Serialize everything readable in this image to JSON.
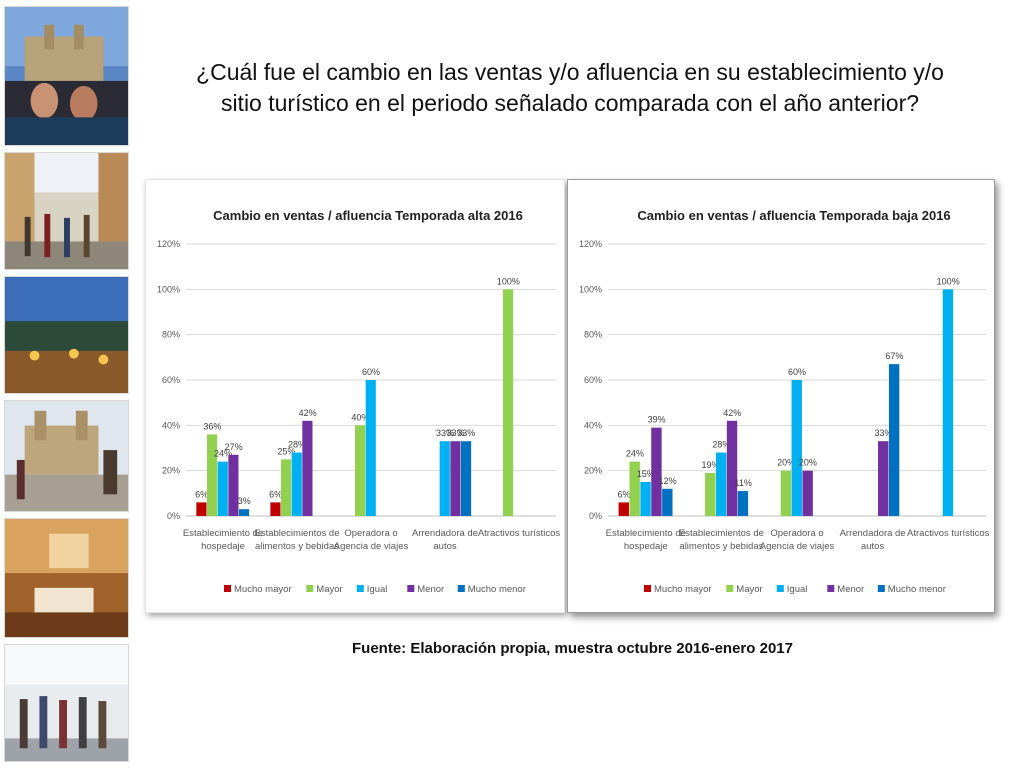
{
  "slide": {
    "title_line1": "¿Cuál fue el cambio en las ventas y/o afluencia en su establecimiento y/o",
    "title_line2": "sitio turístico en el periodo señalado comparada con el año anterior?",
    "source": "Fuente: Elaboración propia, muestra octubre 2016-enero 2017"
  },
  "colors": {
    "Mucho mayor": "#c00000",
    "Mayor": "#92d050",
    "Igual": "#00b0f0",
    "Menor": "#7030a0",
    "Mucho menor": "#0070c0"
  },
  "chart_data": [
    {
      "type": "bar",
      "title": "Cambio en ventas / afluencia Temporada alta 2016",
      "categories": [
        [
          "Establecimiento de",
          "hospedaje"
        ],
        [
          "Establecimientos de",
          "alimentos y bebidas"
        ],
        [
          "Operadora o",
          "Agencia de viajes"
        ],
        [
          "Arrendadora de",
          "autos"
        ],
        [
          "Atractivos turísticos"
        ]
      ],
      "ylim": [
        0,
        120
      ],
      "yticks": [
        "0%",
        "20%",
        "40%",
        "60%",
        "80%",
        "100%",
        "120%"
      ],
      "grid": true,
      "legend_position": "bottom",
      "series": [
        {
          "name": "Mucho mayor",
          "values": [
            6,
            6,
            null,
            null,
            null
          ],
          "labels": [
            "6%",
            "6%",
            null,
            null,
            null
          ]
        },
        {
          "name": "Mayor",
          "values": [
            36,
            25,
            40,
            null,
            100
          ],
          "labels": [
            "36%",
            "25%",
            "40%",
            null,
            "100%"
          ]
        },
        {
          "name": "Igual",
          "values": [
            24,
            28,
            60,
            33,
            null
          ],
          "labels": [
            "24%",
            "28%",
            "60%",
            "33%",
            null
          ]
        },
        {
          "name": "Menor",
          "values": [
            27,
            42,
            null,
            33,
            null
          ],
          "labels": [
            "27%",
            "42%",
            null,
            "33%",
            null
          ]
        },
        {
          "name": "Mucho menor",
          "values": [
            3,
            null,
            null,
            33,
            null
          ],
          "labels": [
            "3%",
            null,
            null,
            "33%",
            null
          ]
        }
      ]
    },
    {
      "type": "bar",
      "title": "Cambio en ventas / afluencia Temporada baja 2016",
      "categories": [
        [
          "Establecimiento de",
          "hospedaje"
        ],
        [
          "Establecimientos de",
          "alimentos y bebidas"
        ],
        [
          "Operadora o",
          "Agencia de viajes"
        ],
        [
          "Arrendadora de",
          "autos"
        ],
        [
          "Atractivos turísticos"
        ]
      ],
      "ylim": [
        0,
        120
      ],
      "yticks": [
        "0%",
        "20%",
        "40%",
        "60%",
        "80%",
        "100%",
        "120%"
      ],
      "grid": true,
      "legend_position": "bottom",
      "series": [
        {
          "name": "Mucho mayor",
          "values": [
            6,
            null,
            null,
            null,
            null
          ],
          "labels": [
            "6%",
            null,
            null,
            null,
            null
          ]
        },
        {
          "name": "Mayor",
          "values": [
            24,
            19,
            20,
            null,
            null
          ],
          "labels": [
            "24%",
            "19%",
            "20%",
            null,
            null
          ]
        },
        {
          "name": "Igual",
          "values": [
            15,
            28,
            60,
            null,
            100
          ],
          "labels": [
            "15%",
            "28%",
            "60%",
            null,
            "100%"
          ]
        },
        {
          "name": "Menor",
          "values": [
            39,
            42,
            20,
            33,
            null
          ],
          "labels": [
            "39%",
            "42%",
            "20%",
            "33%",
            null
          ]
        },
        {
          "name": "Mucho menor",
          "values": [
            12,
            11,
            null,
            67,
            null
          ],
          "labels": [
            "12%",
            "11%",
            null,
            "67%",
            null
          ]
        }
      ]
    }
  ]
}
